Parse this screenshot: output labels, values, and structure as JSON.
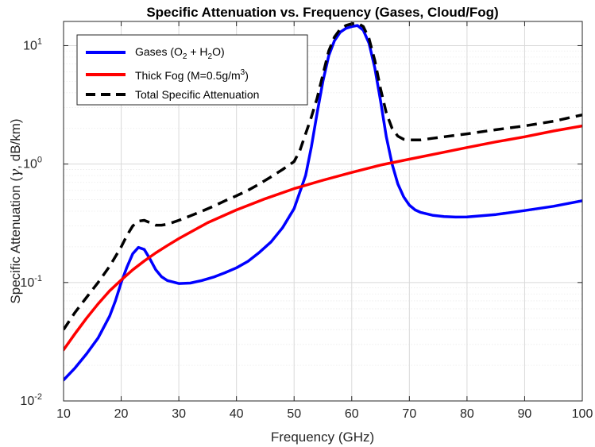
{
  "chart_data": {
    "type": "line",
    "title": "Specific Attenuation vs. Frequency (Gases, Cloud/Fog)",
    "xlabel": "Frequency (GHz)",
    "ylabel": "Specific Attenuation (γ, dB/km)",
    "ylabel_parts": {
      "prefix": "Specific Attenuation (",
      "symbol": "γ",
      "suffix": ", dB/km)"
    },
    "xlim": [
      10,
      100
    ],
    "ylim": [
      0.01,
      16
    ],
    "yscale": "log",
    "grid": true,
    "legend_position": "top-left",
    "xticks": [
      10,
      20,
      30,
      40,
      50,
      60,
      70,
      80,
      90,
      100
    ],
    "xtick_labels": [
      "10",
      "20",
      "30",
      "40",
      "50",
      "60",
      "70",
      "80",
      "90",
      "100"
    ],
    "yticks": [
      {
        "value": 0.01,
        "base": "10",
        "exp": "-2"
      },
      {
        "value": 0.1,
        "base": "10",
        "exp": "-1"
      },
      {
        "value": 1,
        "base": "10",
        "exp": "0"
      },
      {
        "value": 10,
        "base": "10",
        "exp": "1"
      }
    ],
    "series": [
      {
        "name": "Gases (O2 + H2O)",
        "legend": {
          "t1": "Gases (O",
          "s1": "2",
          "t2": " + H",
          "s2": "2",
          "t3": "O)"
        },
        "color": "#0000ff",
        "style": "solid",
        "x": [
          10,
          12,
          14,
          16,
          18,
          19,
          20,
          21,
          22,
          23,
          24,
          25,
          26,
          27,
          28,
          30,
          32,
          34,
          36,
          38,
          40,
          42,
          44,
          46,
          48,
          50,
          52,
          53,
          54,
          55,
          56,
          57,
          58,
          59,
          60,
          61,
          62,
          63,
          64,
          65,
          66,
          67,
          68,
          69,
          70,
          71,
          72,
          74,
          76,
          78,
          80,
          85,
          90,
          95,
          100
        ],
        "y": [
          0.015,
          0.019,
          0.025,
          0.034,
          0.052,
          0.07,
          0.1,
          0.135,
          0.175,
          0.198,
          0.19,
          0.158,
          0.128,
          0.112,
          0.104,
          0.098,
          0.099,
          0.104,
          0.111,
          0.121,
          0.133,
          0.151,
          0.18,
          0.22,
          0.29,
          0.42,
          0.8,
          1.4,
          2.7,
          5.0,
          8.2,
          11.0,
          13.0,
          14.0,
          14.5,
          14.8,
          13.5,
          10.5,
          6.5,
          3.4,
          1.7,
          1.0,
          0.68,
          0.53,
          0.45,
          0.41,
          0.39,
          0.37,
          0.36,
          0.357,
          0.358,
          0.375,
          0.405,
          0.44,
          0.49
        ]
      },
      {
        "name": "Thick Fog (M=0.5g/m3)",
        "legend": {
          "t1": "Thick Fog (M=0.5g/m",
          "sup": "3",
          "t2": ")"
        },
        "color": "#ff0000",
        "style": "solid",
        "x": [
          10,
          12,
          14,
          16,
          18,
          20,
          22,
          24,
          26,
          28,
          30,
          35,
          40,
          45,
          50,
          55,
          60,
          65,
          70,
          75,
          80,
          85,
          90,
          95,
          100
        ],
        "y": [
          0.027,
          0.037,
          0.05,
          0.066,
          0.085,
          0.105,
          0.128,
          0.152,
          0.178,
          0.205,
          0.235,
          0.32,
          0.41,
          0.51,
          0.62,
          0.73,
          0.85,
          0.98,
          1.1,
          1.23,
          1.38,
          1.54,
          1.7,
          1.9,
          2.1
        ]
      },
      {
        "name": "Total Specific Attenuation",
        "legend": {
          "t1": "Total Specific Attenuation"
        },
        "color": "#000000",
        "style": "dashed",
        "x": [
          10,
          12,
          14,
          16,
          18,
          20,
          21,
          22,
          23,
          24,
          25,
          26,
          27,
          28,
          30,
          32,
          34,
          36,
          38,
          40,
          42,
          44,
          46,
          48,
          50,
          51,
          52,
          53,
          54,
          55,
          56,
          57,
          58,
          59,
          60,
          61,
          62,
          63,
          64,
          65,
          66,
          67,
          68,
          69,
          70,
          72,
          74,
          76,
          78,
          80,
          85,
          90,
          95,
          100
        ],
        "y": [
          0.04,
          0.056,
          0.075,
          0.1,
          0.137,
          0.2,
          0.25,
          0.3,
          0.33,
          0.335,
          0.32,
          0.305,
          0.305,
          0.31,
          0.335,
          0.365,
          0.4,
          0.44,
          0.49,
          0.54,
          0.6,
          0.68,
          0.78,
          0.9,
          1.05,
          1.3,
          1.8,
          2.5,
          3.6,
          5.7,
          9.0,
          11.8,
          13.8,
          14.8,
          15.3,
          15.5,
          14.5,
          11.5,
          7.5,
          4.3,
          2.7,
          2.0,
          1.72,
          1.62,
          1.6,
          1.6,
          1.65,
          1.7,
          1.75,
          1.8,
          1.95,
          2.1,
          2.3,
          2.6
        ]
      }
    ]
  }
}
